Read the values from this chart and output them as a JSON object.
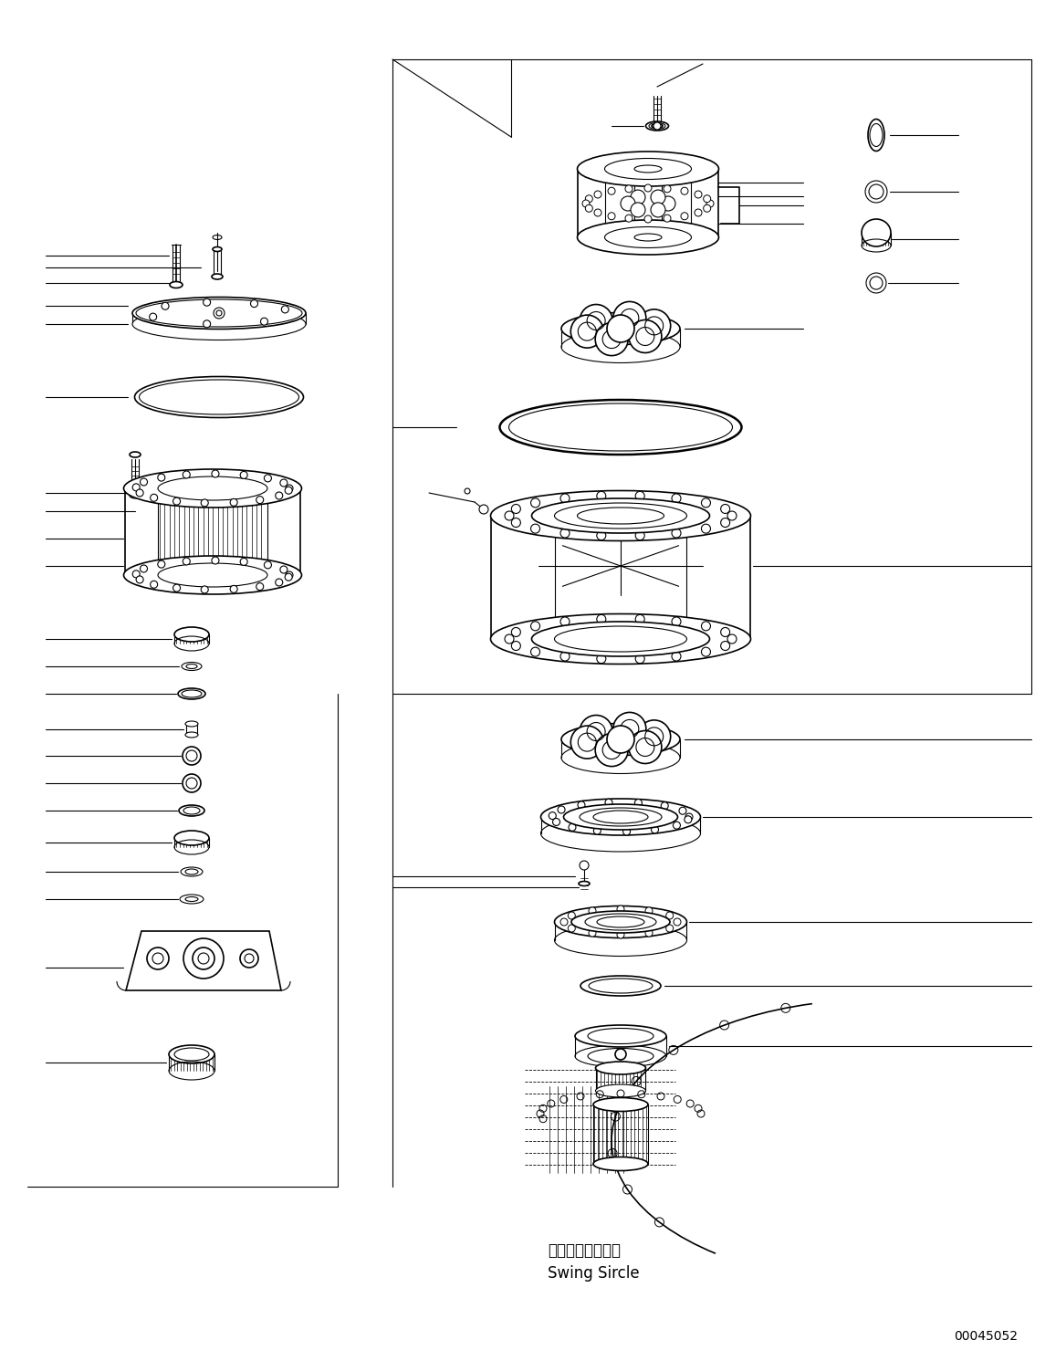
{
  "bg_color": "#ffffff",
  "line_color": "#000000",
  "title_jp": "スイングサークル",
  "title_en": "Swing Sircle",
  "part_number": "00045052",
  "fig_width": 11.57,
  "fig_height": 14.91,
  "dpi": 100
}
